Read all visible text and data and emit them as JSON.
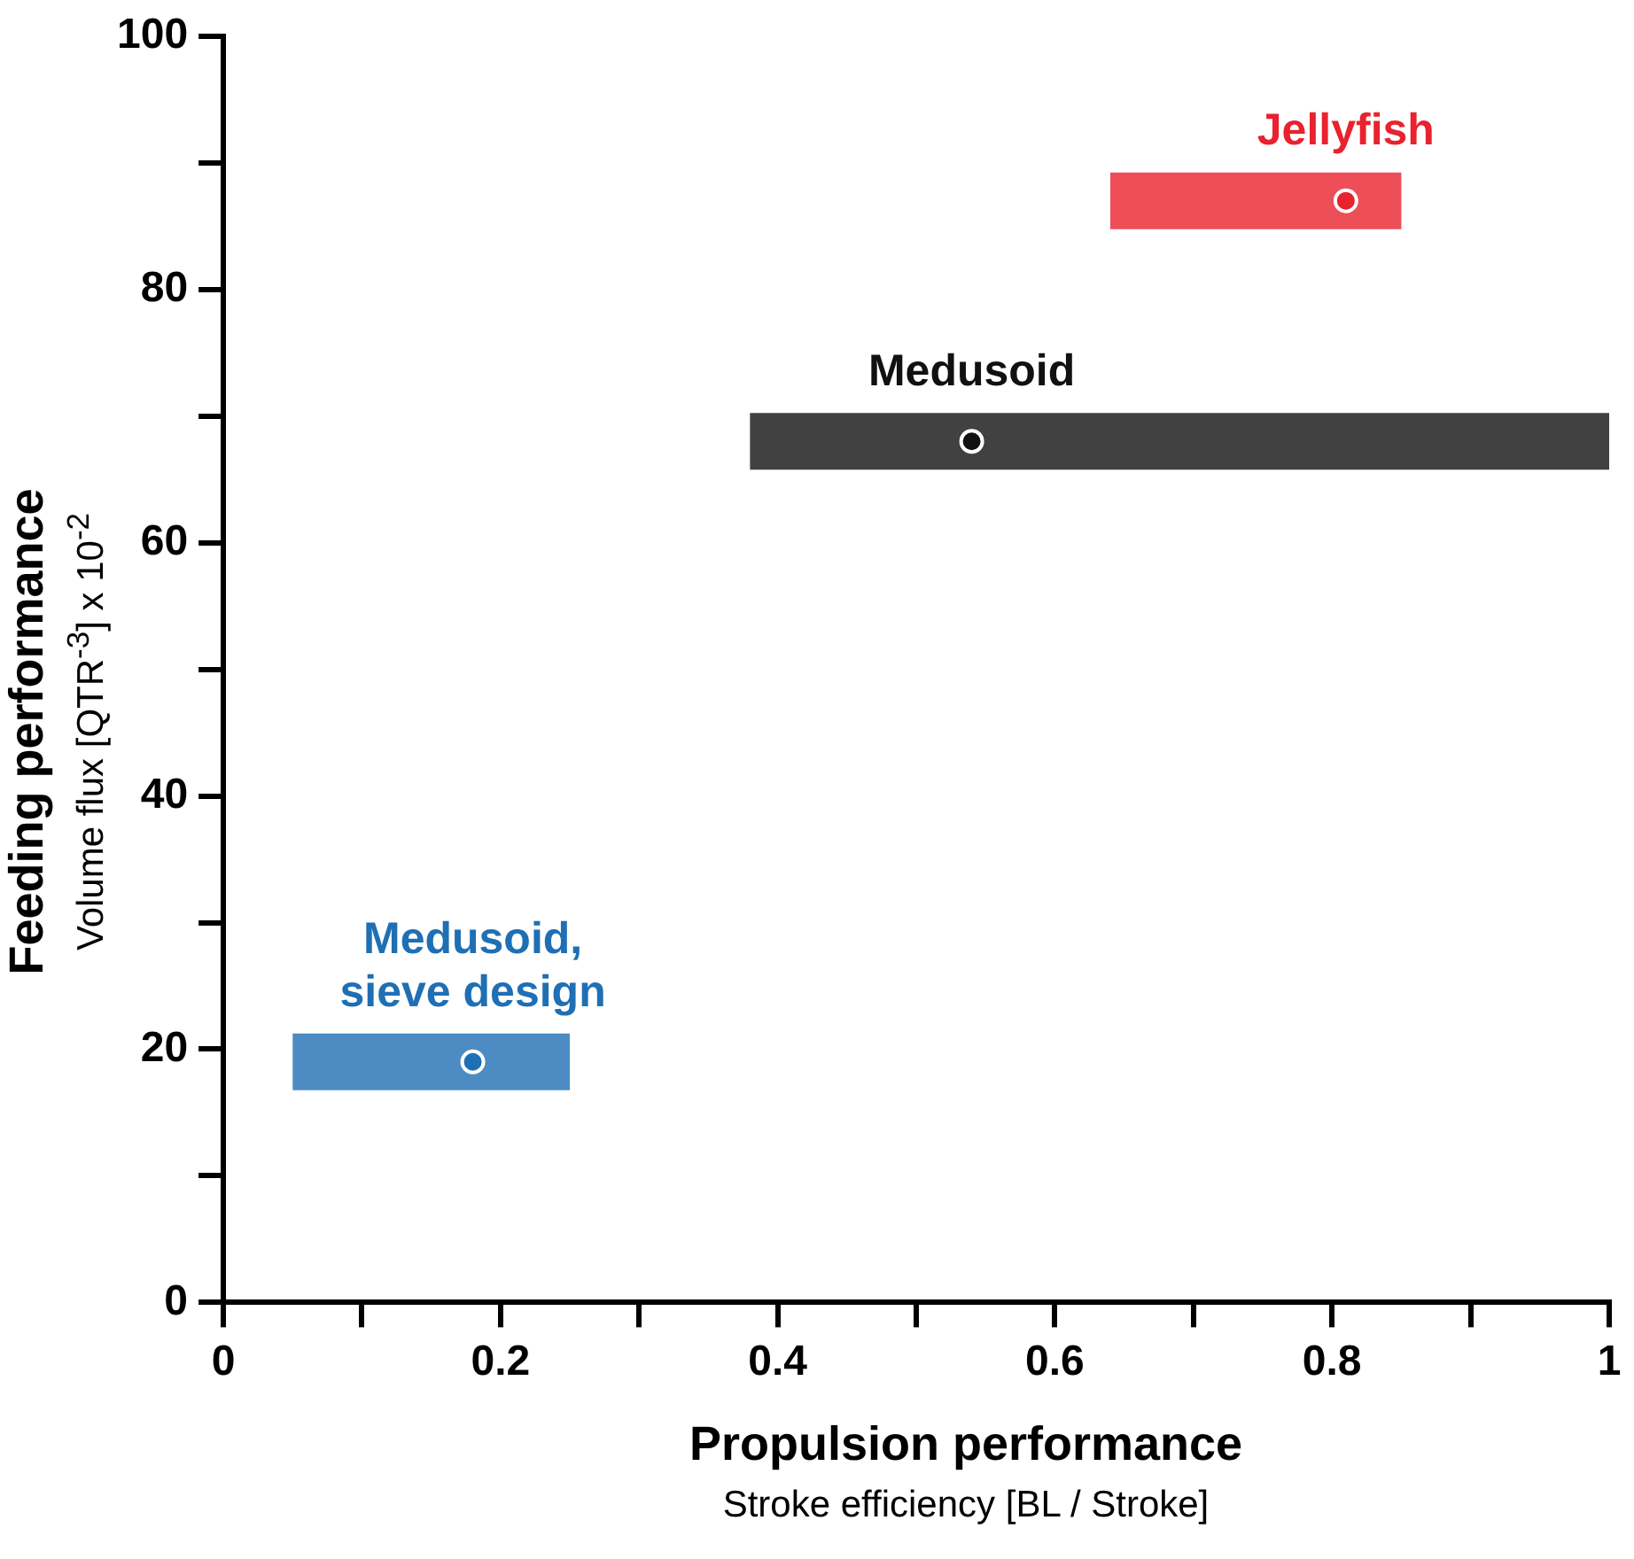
{
  "chart_data": {
    "type": "scatter",
    "xlabel": "Propulsion performance",
    "subtitle": "Stroke efficiency  [BL / Stroke]",
    "ylabel": "Feeding performance",
    "y2label": "Volume flux [QTR$^{-3}$] x 10$^{-2}$",
    "series": [
      {
        "name": "Jellyfish",
        "color": "#e8222e",
        "x": [
          0.81
        ],
        "values": [
          87
        ],
        "xerrors": [
          [
            0.64,
            0.85
          ]
        ]
      },
      {
        "name": "Medusoid",
        "color": "#111111",
        "x": [
          0.54
        ],
        "values": [
          68
        ],
        "xerrors": [
          [
            0.38,
            1.0
          ]
        ]
      },
      {
        "name": "Medusoid, sieve design",
        "color": "#1f6fb4",
        "x": [
          0.18
        ],
        "values": [
          19
        ],
        "xerrors": [
          [
            0.05,
            0.25
          ]
        ]
      }
    ],
    "xlim": [
      0,
      1
    ],
    "ylim": [
      0,
      100
    ],
    "xticks": [
      0,
      {
        "value": 0.1,
        "label": null
      },
      0.2,
      {
        "value": 0.3,
        "label": null
      },
      0.4,
      {
        "value": 0.5,
        "label": null
      },
      0.6,
      {
        "value": 0.7,
        "label": null
      },
      0.8,
      {
        "value": 0.9,
        "label": null
      },
      1
    ],
    "yticks": [
      0,
      {
        "value": 10,
        "label": null
      },
      20,
      {
        "value": 30,
        "label": null
      },
      40,
      {
        "value": 50,
        "label": null
      },
      60,
      {
        "value": 70,
        "label": null
      },
      80,
      {
        "value": 90,
        "label": null
      },
      100
    ],
    "grid": false,
    "legend": false,
    "marker": "circle"
  }
}
